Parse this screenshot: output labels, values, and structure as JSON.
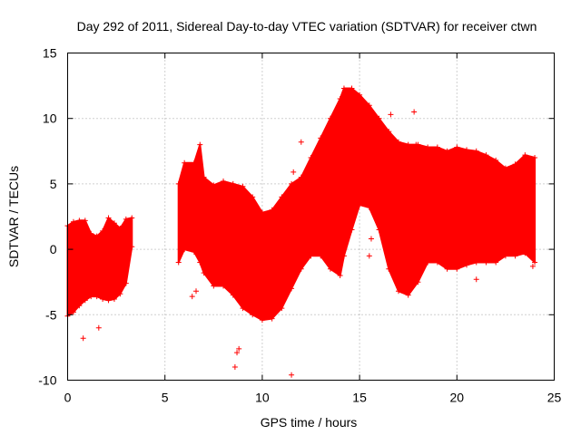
{
  "chart_data": {
    "type": "scatter",
    "title": "Day 292 of 2011, Sidereal Day-to-day VTEC variation (SDTVAR) for receiver ctwn",
    "xlabel": "GPS time / hours",
    "ylabel": "SDTVAR / TECUs",
    "xlim": [
      0,
      25
    ],
    "ylim": [
      -10,
      15
    ],
    "xticks": [
      "0",
      "5",
      "10",
      "15",
      "20",
      "25"
    ],
    "yticks": [
      "-10",
      "-5",
      "0",
      "5",
      "10",
      "15"
    ],
    "grid": true,
    "marker": "+",
    "color": "#ff0000",
    "series": [
      {
        "name": "SDTVAR",
        "envelope_segments": [
          {
            "x": [
              0.0,
              0.3,
              0.6,
              0.9,
              1.2,
              1.5,
              1.8,
              2.1,
              2.4,
              2.7,
              3.0,
              3.3
            ],
            "upper": [
              1.8,
              2.1,
              2.2,
              2.2,
              1.2,
              1.0,
              1.4,
              2.4,
              2.0,
              1.6,
              2.3,
              2.4
            ],
            "lower": [
              -5.1,
              -4.8,
              -4.3,
              -3.9,
              -3.6,
              -3.6,
              -3.8,
              -3.9,
              -3.8,
              -3.4,
              -2.6,
              0.2
            ]
          },
          {
            "x": [
              5.7,
              6.0,
              6.5,
              6.8,
              7.0,
              7.5,
              8.0,
              8.5,
              9.0,
              9.5,
              10.0,
              10.5,
              11.0,
              11.5,
              12.0,
              12.5,
              13.0,
              13.5,
              14.0,
              14.2,
              14.6,
              15.0,
              15.5,
              16.0,
              16.5,
              17.0,
              17.5,
              18.0,
              18.5,
              19.0,
              19.5,
              20.0,
              20.5,
              21.0,
              21.5,
              22.0,
              22.5,
              23.0,
              23.5,
              24.0
            ],
            "upper": [
              5.0,
              6.6,
              6.6,
              8.0,
              5.5,
              4.9,
              5.2,
              5.0,
              4.8,
              4.0,
              2.8,
              3.0,
              4.0,
              5.0,
              5.5,
              7.0,
              8.5,
              10.0,
              11.5,
              12.3,
              12.3,
              11.8,
              11.0,
              10.0,
              9.0,
              8.2,
              8.0,
              8.0,
              7.8,
              7.8,
              7.5,
              7.8,
              7.6,
              7.5,
              7.2,
              6.8,
              6.2,
              6.5,
              7.2,
              7.0
            ],
            "lower": [
              -1.0,
              0.0,
              -0.2,
              -1.0,
              -1.8,
              -2.8,
              -2.8,
              -3.5,
              -4.5,
              -5.0,
              -5.4,
              -5.3,
              -4.5,
              -3.0,
              -1.5,
              -0.5,
              -0.5,
              -1.5,
              -2.0,
              -0.5,
              1.5,
              3.4,
              3.2,
              1.5,
              -1.5,
              -3.2,
              -3.5,
              -2.5,
              -1.0,
              -1.0,
              -1.5,
              -1.5,
              -1.2,
              -1.0,
              -1.0,
              -1.0,
              -0.5,
              -0.5,
              -0.3,
              -1.0
            ]
          }
        ],
        "outliers": [
          {
            "x": 0.8,
            "y": -6.8
          },
          {
            "x": 1.6,
            "y": -6.0
          },
          {
            "x": 6.4,
            "y": -3.6
          },
          {
            "x": 6.6,
            "y": -3.2
          },
          {
            "x": 8.6,
            "y": -9.0
          },
          {
            "x": 8.7,
            "y": -7.9
          },
          {
            "x": 8.8,
            "y": -7.6
          },
          {
            "x": 9.3,
            "y": -4.4
          },
          {
            "x": 11.5,
            "y": -9.6
          },
          {
            "x": 12.0,
            "y": 8.2
          },
          {
            "x": 11.6,
            "y": 5.9
          },
          {
            "x": 15.5,
            "y": -0.5
          },
          {
            "x": 15.6,
            "y": 0.8
          },
          {
            "x": 15.8,
            "y": 3.0
          },
          {
            "x": 16.6,
            "y": 10.3
          },
          {
            "x": 17.8,
            "y": 10.5
          },
          {
            "x": 17.9,
            "y": 8.0
          },
          {
            "x": 17.6,
            "y": -0.7
          },
          {
            "x": 21.0,
            "y": -2.3
          },
          {
            "x": 23.9,
            "y": -1.3
          }
        ]
      }
    ]
  }
}
